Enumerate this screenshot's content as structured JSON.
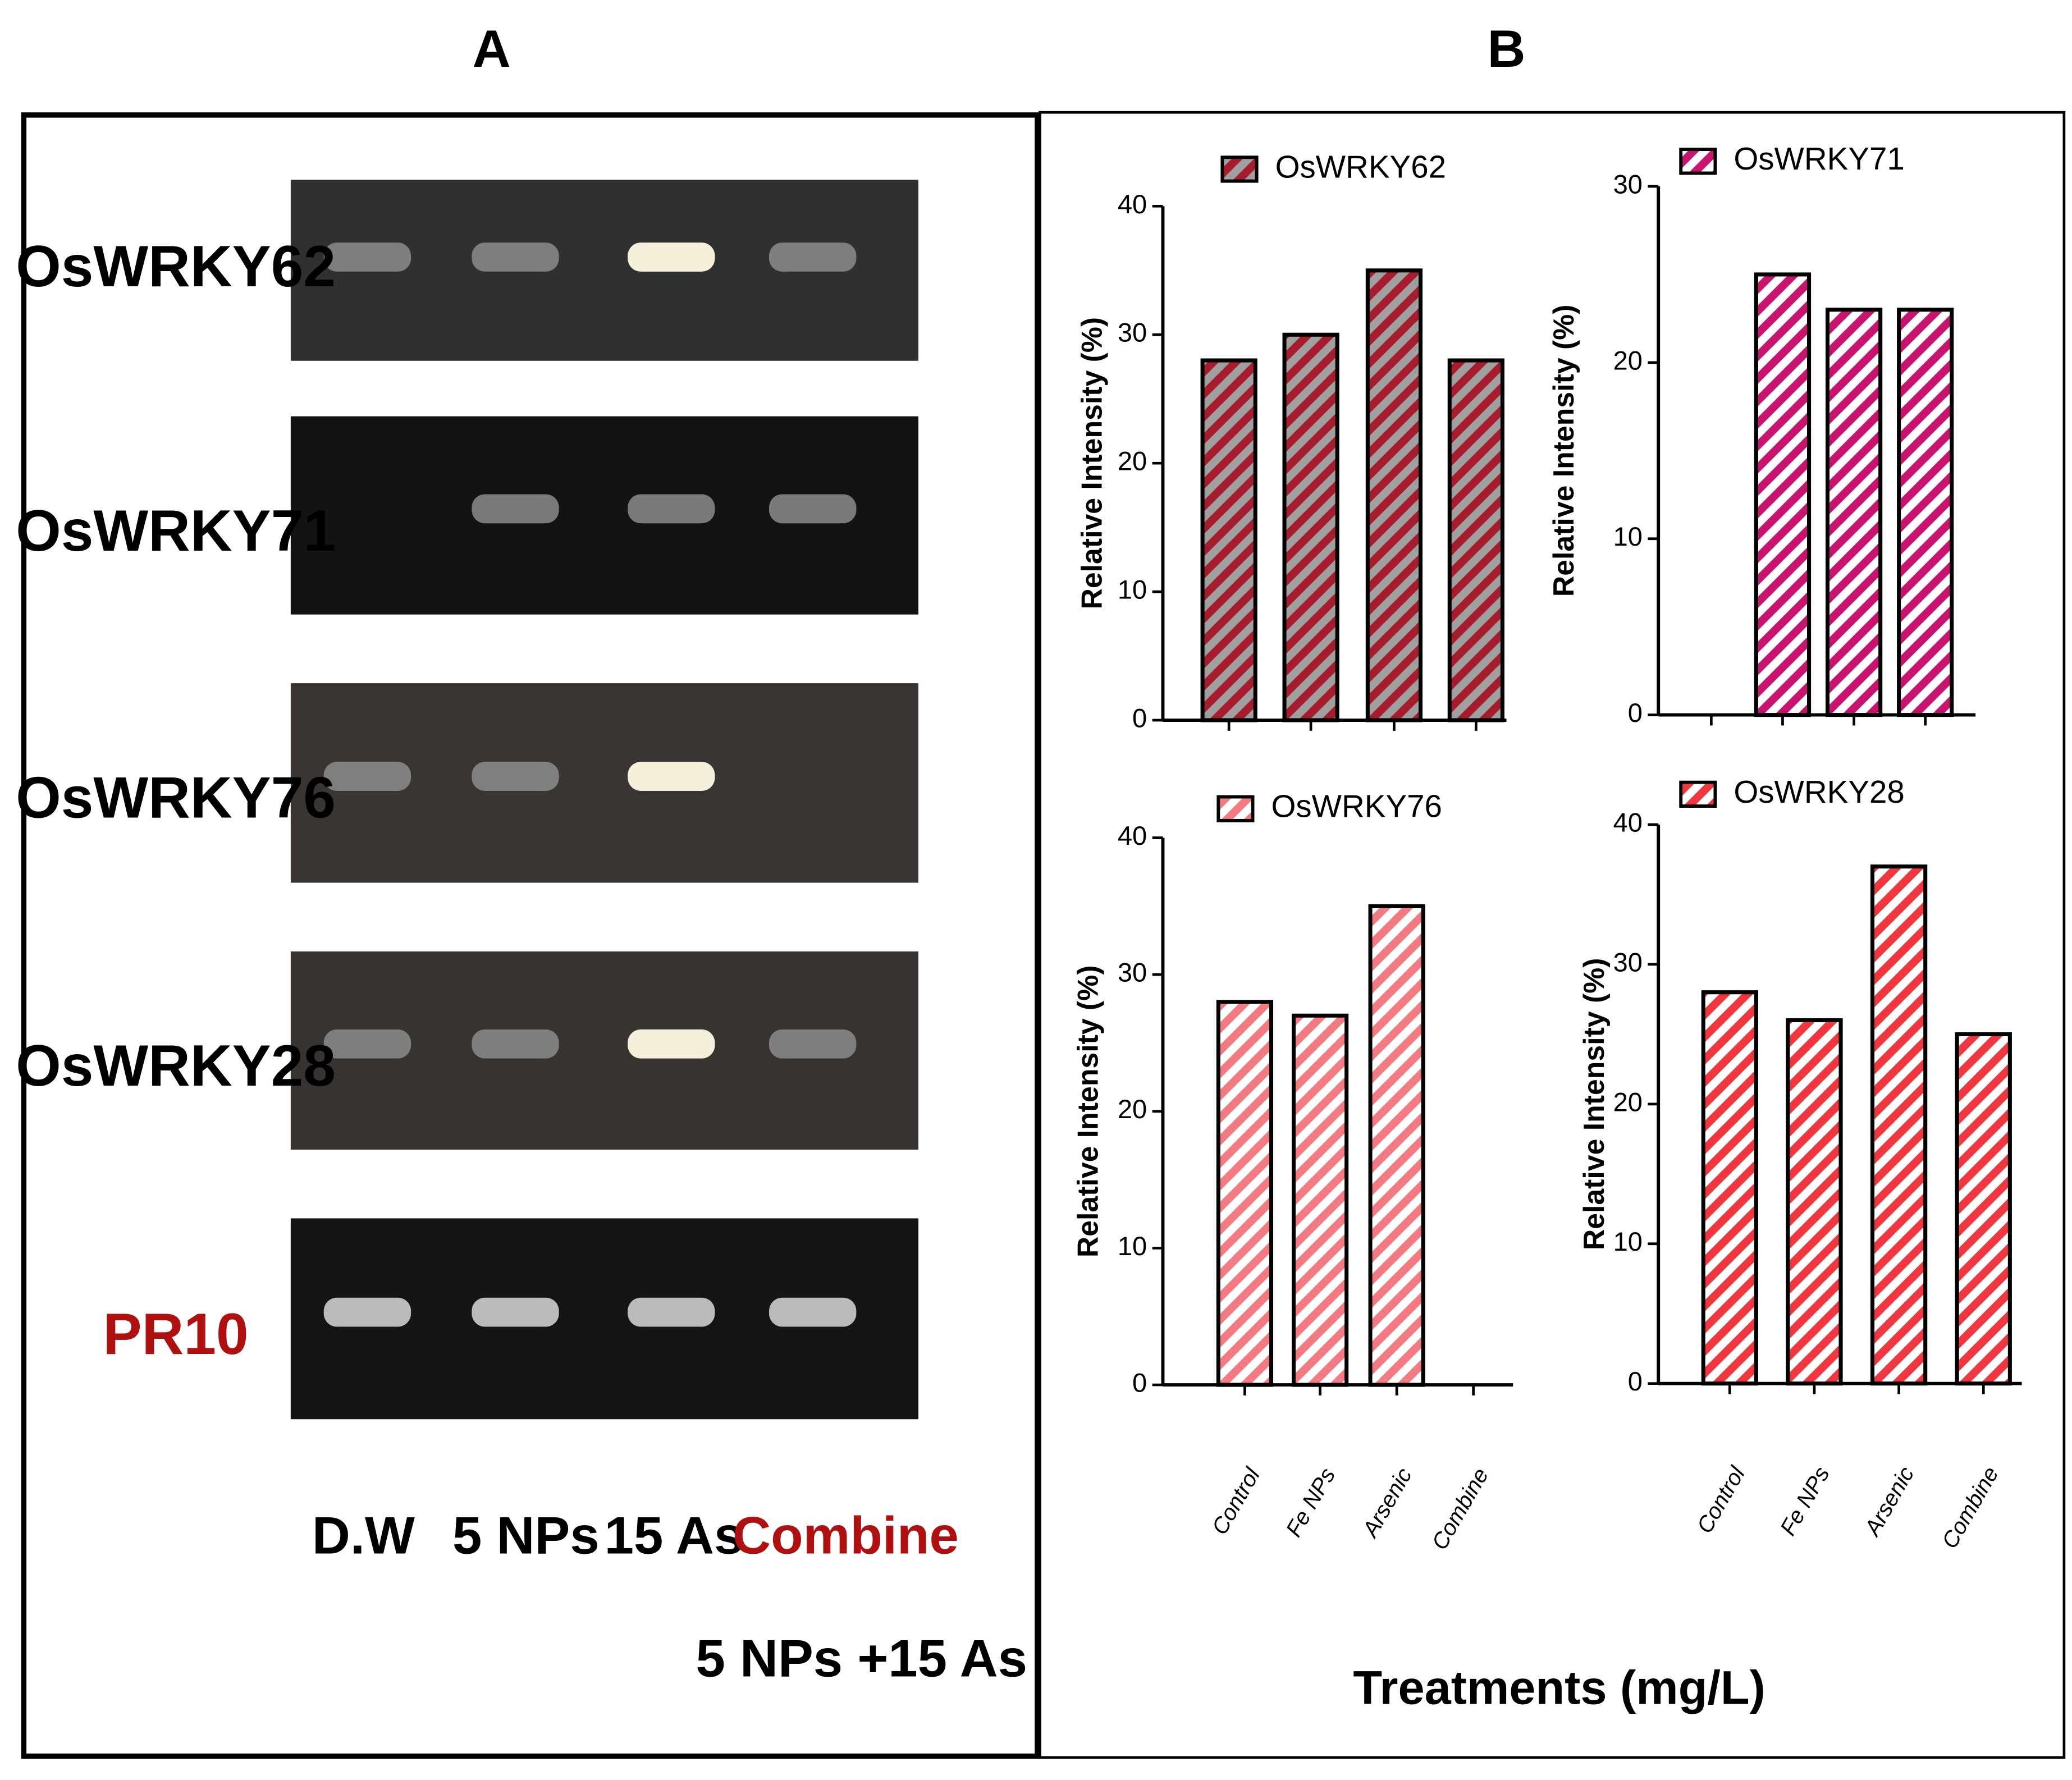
{
  "figure": {
    "panel_labels": [
      "A",
      "B"
    ],
    "gel": {
      "genes": [
        "OsWRKY62",
        "OsWRKY71",
        "OsWRKY76",
        "OsWRKY28",
        "PR10"
      ],
      "lanes": [
        "D.W",
        "5 NPs",
        "15 As",
        "Combine"
      ],
      "lane_note": "5 NPs +15 As"
    },
    "x_axis_title": "Treatments (mg/L)"
  },
  "chart_data": [
    {
      "type": "bar",
      "categories": [
        null,
        null,
        null,
        null
      ],
      "series": [
        {
          "name": "OsWRKY62",
          "color": "#a51d2d",
          "values": [
            28,
            30,
            35,
            28
          ]
        }
      ],
      "y_label": "Relative Intensity (%)",
      "ylim": [
        0,
        40
      ],
      "yticks": [
        0,
        10,
        20,
        30,
        40
      ]
    },
    {
      "type": "bar",
      "categories": [
        null,
        null,
        null,
        null
      ],
      "series": [
        {
          "name": "OsWRKY71",
          "color": "#c8136f",
          "values": [
            0,
            25,
            23,
            23
          ]
        }
      ],
      "y_label": "Relative Intensity (%)",
      "ylim": [
        0,
        30
      ],
      "yticks": [
        0,
        10,
        20,
        30
      ]
    },
    {
      "type": "bar",
      "categories": [
        "Control",
        "Fe NPs",
        "Arsenic",
        "Combine"
      ],
      "series": [
        {
          "name": "OsWRKY76",
          "color": "#f47a82",
          "values": [
            28,
            27,
            35,
            0
          ]
        }
      ],
      "y_label": "Relative Intensity (%)",
      "ylim": [
        0,
        40
      ],
      "yticks": [
        0,
        10,
        20,
        30,
        40
      ]
    },
    {
      "type": "bar",
      "categories": [
        "Control",
        "Fe NPs",
        "Arsenic",
        "Combine"
      ],
      "series": [
        {
          "name": "OsWRKY28",
          "color": "#f0363e",
          "values": [
            28,
            26,
            37,
            25
          ]
        }
      ],
      "y_label": "Relative Intensity (%)",
      "ylim": [
        0,
        40
      ],
      "yticks": [
        0,
        10,
        20,
        30,
        40
      ]
    }
  ]
}
